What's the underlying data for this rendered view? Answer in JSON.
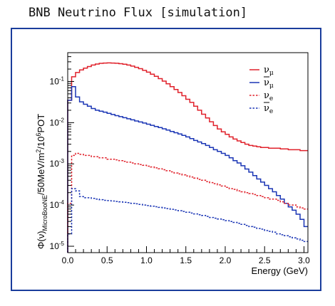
{
  "caption": "BNB Neutrino Flux [simulation]",
  "colors": {
    "frame": "#1a3d9c",
    "red": "#e0202a",
    "blue": "#1a35b5"
  },
  "chart_data": {
    "type": "line",
    "title": "BNB Neutrino Flux [simulation]",
    "xlabel": "Energy (GeV)",
    "ylabel": "Φ(ν)_MicroBooNE/50MeV/m²/10⁶POT",
    "xlim": [
      0,
      3.05
    ],
    "ylim": [
      7e-06,
      0.5
    ],
    "yscale": "log",
    "grid": false,
    "legend_position": "top-right",
    "x_ticks": [
      "0.0",
      "0.5",
      "1.0",
      "1.5",
      "2.0",
      "2.5",
      "3.0"
    ],
    "y_ticks": [
      {
        "base": "10",
        "exp": "-5"
      },
      {
        "base": "10",
        "exp": "-4"
      },
      {
        "base": "10",
        "exp": "-3"
      },
      {
        "base": "10",
        "exp": "-2"
      },
      {
        "base": "10",
        "exp": "-1"
      }
    ],
    "x": [
      0.025,
      0.075,
      0.125,
      0.175,
      0.225,
      0.275,
      0.325,
      0.375,
      0.425,
      0.475,
      0.525,
      0.575,
      0.625,
      0.675,
      0.725,
      0.775,
      0.825,
      0.875,
      0.925,
      0.975,
      1.025,
      1.075,
      1.125,
      1.175,
      1.225,
      1.275,
      1.325,
      1.375,
      1.425,
      1.475,
      1.525,
      1.575,
      1.625,
      1.675,
      1.725,
      1.775,
      1.825,
      1.875,
      1.925,
      1.975,
      2.025,
      2.075,
      2.125,
      2.175,
      2.225,
      2.275,
      2.325,
      2.375,
      2.425,
      2.475,
      2.525,
      2.575,
      2.625,
      2.675,
      2.725,
      2.775,
      2.825,
      2.875,
      2.925,
      2.975,
      3.025
    ],
    "series": [
      {
        "name": "ν_μ",
        "style": "solid",
        "color": "#e0202a",
        "values": [
          0.035,
          0.13,
          0.165,
          0.19,
          0.21,
          0.23,
          0.25,
          0.265,
          0.275,
          0.28,
          0.282,
          0.28,
          0.276,
          0.27,
          0.262,
          0.25,
          0.236,
          0.22,
          0.204,
          0.186,
          0.168,
          0.15,
          0.133,
          0.117,
          0.102,
          0.088,
          0.075,
          0.064,
          0.054,
          0.045,
          0.037,
          0.031,
          0.025,
          0.02,
          0.016,
          0.013,
          0.0105,
          0.0085,
          0.007,
          0.006,
          0.0052,
          0.0045,
          0.004,
          0.0036,
          0.0033,
          0.003,
          0.0028,
          0.0027,
          0.0026,
          0.0025,
          0.0025,
          0.0024,
          0.0024,
          0.0024,
          0.0023,
          0.0023,
          0.0022,
          0.0022,
          0.0022,
          0.0021,
          0.0021
        ]
      },
      {
        "name": "ν̄_μ",
        "style": "solid",
        "color": "#1a35b5",
        "values": [
          0.035,
          0.075,
          0.042,
          0.032,
          0.028,
          0.025,
          0.022,
          0.02,
          0.019,
          0.018,
          0.0168,
          0.0158,
          0.0148,
          0.014,
          0.0132,
          0.0124,
          0.0117,
          0.011,
          0.0104,
          0.0098,
          0.0092,
          0.0086,
          0.0081,
          0.0076,
          0.0071,
          0.0066,
          0.0061,
          0.0057,
          0.0053,
          0.0049,
          0.0045,
          0.0041,
          0.0037,
          0.0034,
          0.0031,
          0.0028,
          0.0025,
          0.0022,
          0.002,
          0.0018,
          0.0016,
          0.0014,
          0.0012,
          0.00105,
          0.0009,
          0.00075,
          0.00063,
          0.00052,
          0.00043,
          0.00036,
          0.0003,
          0.00025,
          0.00021,
          0.00017,
          0.00014,
          0.00011,
          9e-05,
          7.5e-05,
          6e-05,
          4.5e-05,
          3e-05
        ]
      },
      {
        "name": "ν_e",
        "style": "dashed",
        "color": "#e0202a",
        "values": [
          0.00011,
          0.0016,
          0.0018,
          0.0017,
          0.0016,
          0.0016,
          0.0015,
          0.0015,
          0.0014,
          0.0014,
          0.0013,
          0.0013,
          0.00125,
          0.0012,
          0.00115,
          0.0011,
          0.00105,
          0.001,
          0.00096,
          0.00092,
          0.00088,
          0.00084,
          0.0008,
          0.00076,
          0.00072,
          0.00068,
          0.00064,
          0.0006,
          0.00057,
          0.00054,
          0.00051,
          0.00048,
          0.00045,
          0.00042,
          0.0004,
          0.00037,
          0.00035,
          0.00033,
          0.00031,
          0.00029,
          0.00027,
          0.00025,
          0.00024,
          0.00022,
          0.00021,
          0.0002,
          0.00019,
          0.00018,
          0.00017,
          0.00016,
          0.00015,
          0.00014,
          0.00014,
          0.00013,
          0.00012,
          0.00011,
          0.0001,
          0.0001,
          9e-05,
          8.5e-05,
          8e-05
        ]
      },
      {
        "name": "ν̄_e",
        "style": "dashed",
        "color": "#1a35b5",
        "values": [
          2e-05,
          0.00025,
          0.00022,
          0.00016,
          0.00015,
          0.00015,
          0.000145,
          0.00014,
          0.000135,
          0.00013,
          0.000128,
          0.000125,
          0.000122,
          0.00012,
          0.000117,
          0.000114,
          0.00011,
          0.000107,
          0.000104,
          0.0001,
          9.7e-05,
          9.4e-05,
          9.1e-05,
          8.8e-05,
          8.5e-05,
          8.2e-05,
          7.9e-05,
          7.6e-05,
          7.3e-05,
          7e-05,
          6.7e-05,
          6.4e-05,
          6.1e-05,
          5.8e-05,
          5.6e-05,
          5.3e-05,
          5e-05,
          4.8e-05,
          4.6e-05,
          4.4e-05,
          4.2e-05,
          4e-05,
          3.8e-05,
          3.6e-05,
          3.4e-05,
          3.2e-05,
          3e-05,
          2.9e-05,
          2.7e-05,
          2.6e-05,
          2.4e-05,
          2.3e-05,
          2.2e-05,
          2e-05,
          1.9e-05,
          1.8e-05,
          1.7e-05,
          1.6e-05,
          1.5e-05,
          1.4e-05,
          1.3e-05
        ]
      }
    ]
  }
}
